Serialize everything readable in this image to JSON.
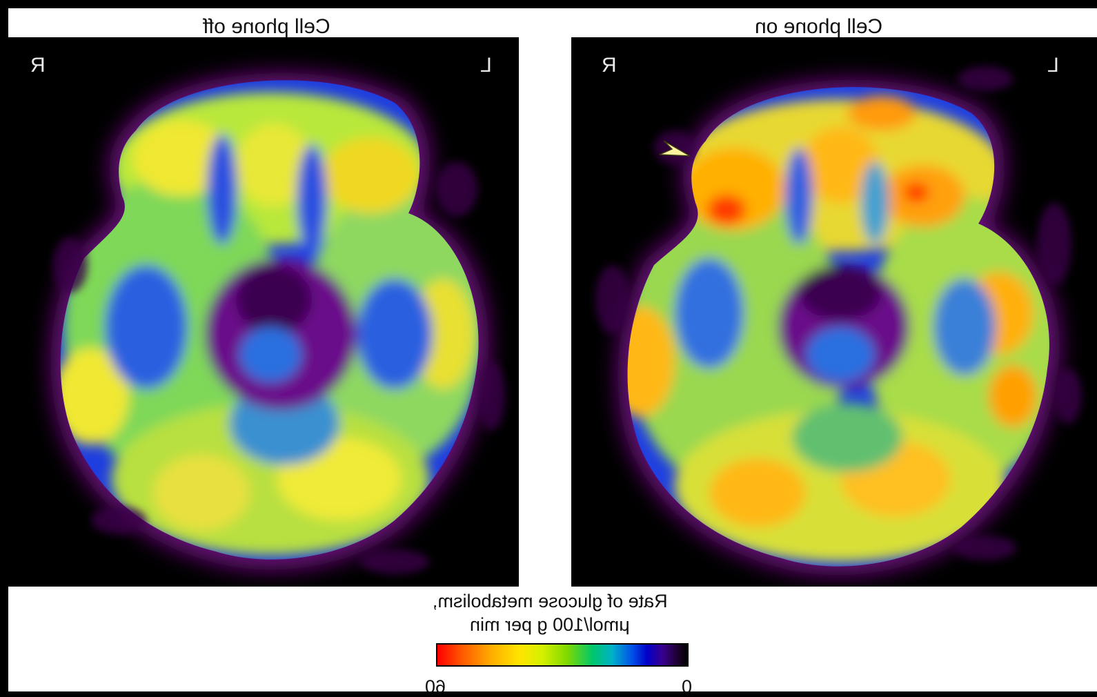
{
  "left_panel": {
    "title": "Cell phone off",
    "mark_left": "R",
    "mark_right": "L"
  },
  "right_panel": {
    "title": "Cell phone on",
    "mark_left": "R",
    "mark_right": "L"
  },
  "colorbar": {
    "title_line1": "Rate of glucose metabolism,",
    "title_line2": "μmol/100 g per min",
    "tick_left": "60",
    "tick_right": "0"
  },
  "colors": {
    "background": "#000000",
    "sheet": "#ffffff",
    "brain_rim": "#7a0a8a",
    "low": "#1e2cd8",
    "mid": "#3fc86a",
    "high_mid": "#d8ef2a",
    "high": "#ffb400",
    "peak": "#ff3000",
    "arrowhead": "#fff3a0"
  }
}
